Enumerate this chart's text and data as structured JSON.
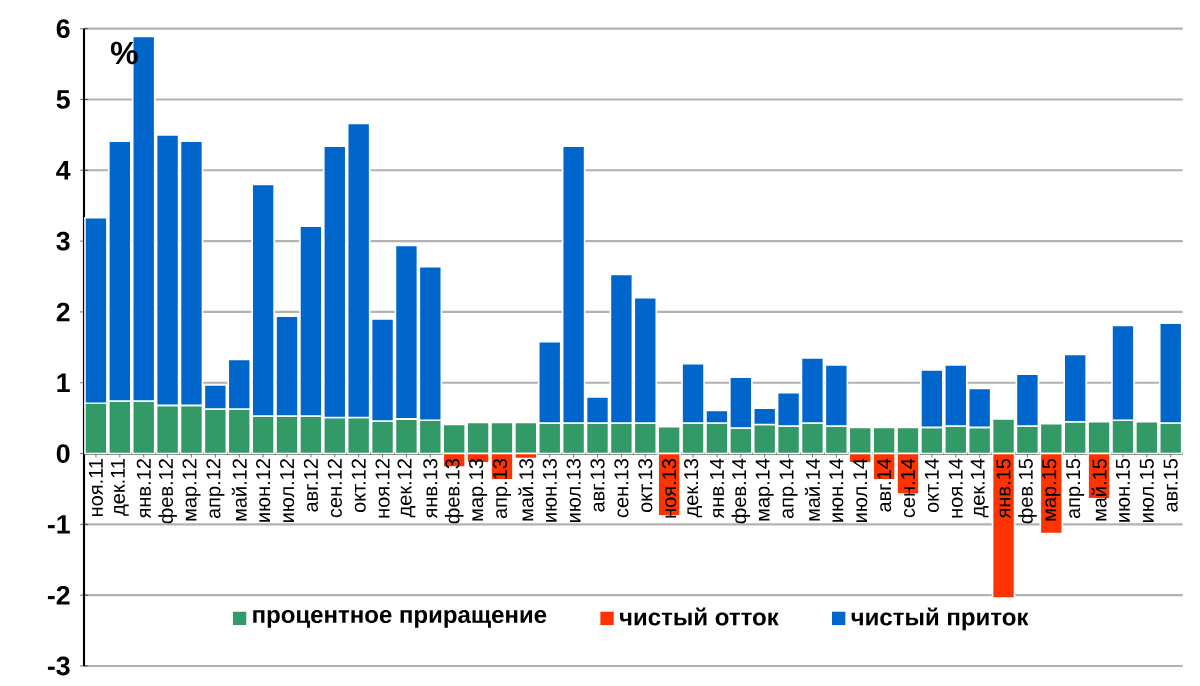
{
  "chart_data": {
    "type": "bar",
    "stacked": true,
    "ylabel": "%",
    "categories": [
      "ноя.11",
      "дек.11",
      "янв.12",
      "фев.12",
      "мар.12",
      "апр.12",
      "май.12",
      "июн.12",
      "июл.12",
      "авг.12",
      "сен.12",
      "окт.12",
      "ноя.12",
      "дек.12",
      "янв.13",
      "фев.13",
      "мар.13",
      "апр.13",
      "май.13",
      "июн.13",
      "июл.13",
      "авг.13",
      "сен.13",
      "окт.13",
      "ноя.13",
      "дек.13",
      "янв.14",
      "фев.14",
      "мар.14",
      "апр.14",
      "май.14",
      "июн.14",
      "июл.14",
      "авг.14",
      "сен.14",
      "окт.14",
      "ноя.14",
      "дек.14",
      "янв.15",
      "фев.15",
      "мар.15",
      "апр.15",
      "май.15",
      "июн.15",
      "июл.15",
      "авг.15"
    ],
    "series": [
      {
        "name": "процентное приращение",
        "color": "#339966",
        "values": [
          0.71,
          0.74,
          0.74,
          0.68,
          0.68,
          0.63,
          0.63,
          0.53,
          0.53,
          0.53,
          0.51,
          0.51,
          0.46,
          0.49,
          0.47,
          0.41,
          0.44,
          0.44,
          0.44,
          0.43,
          0.43,
          0.43,
          0.43,
          0.43,
          0.38,
          0.43,
          0.43,
          0.36,
          0.41,
          0.39,
          0.43,
          0.39,
          0.37,
          0.37,
          0.37,
          0.37,
          0.39,
          0.37,
          0.49,
          0.39,
          0.42,
          0.45,
          0.45,
          0.47,
          0.45,
          0.43
        ]
      },
      {
        "name": "чистый отток",
        "color": "#ff3300",
        "values": [
          null,
          null,
          null,
          null,
          null,
          null,
          null,
          null,
          null,
          null,
          null,
          null,
          null,
          null,
          null,
          -0.19,
          -0.13,
          -0.37,
          -0.07,
          null,
          null,
          null,
          null,
          null,
          -0.88,
          null,
          null,
          null,
          null,
          null,
          null,
          null,
          -0.13,
          -0.37,
          -0.57,
          null,
          null,
          null,
          -2.04,
          null,
          -1.13,
          null,
          -0.64,
          null,
          null,
          null
        ]
      },
      {
        "name": "чистый приток",
        "color": "#0066cc",
        "values": [
          2.62,
          3.67,
          5.15,
          3.82,
          3.73,
          0.34,
          0.7,
          3.27,
          1.41,
          2.68,
          3.83,
          4.15,
          1.44,
          2.45,
          2.17,
          null,
          null,
          null,
          null,
          1.15,
          3.91,
          0.37,
          2.1,
          1.77,
          null,
          0.84,
          0.18,
          0.72,
          0.23,
          0.47,
          0.92,
          0.86,
          null,
          null,
          null,
          0.81,
          0.86,
          0.55,
          null,
          0.73,
          null,
          0.95,
          null,
          1.34,
          null,
          1.41
        ]
      }
    ],
    "ylim": [
      -3,
      6
    ],
    "yticks": [
      -3,
      -2,
      -1,
      0,
      1,
      2,
      3,
      4,
      5,
      6
    ],
    "grid": "y",
    "legend": "bottom"
  }
}
